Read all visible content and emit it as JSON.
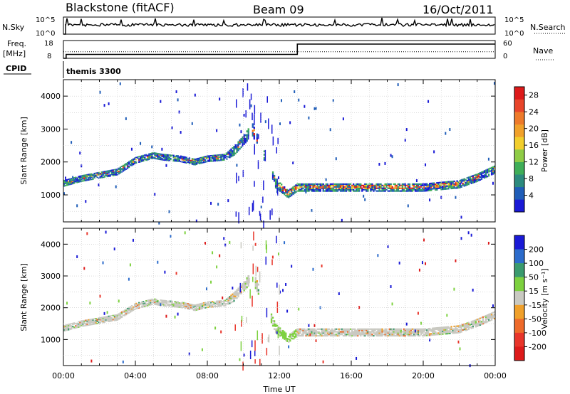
{
  "header": {
    "station": "Blackstone (fitACF)",
    "beam": "Beam 09",
    "date": "16/Oct/2011"
  },
  "panels": {
    "nsky": {
      "label": "N.Sky",
      "ticks": [
        "10^5",
        "10^0"
      ]
    },
    "nsearch": {
      "label": "N.Search",
      "ticks": [
        "10^5",
        "10^0"
      ]
    },
    "freq": {
      "label_top": "Freq.",
      "label_bottom": "[MHz]",
      "ticks": [
        "18",
        "8"
      ]
    },
    "nave": {
      "label": "Nave",
      "ticks": [
        "60",
        "0"
      ]
    },
    "cpid": {
      "label": "CPID",
      "value": "themis 3300"
    }
  },
  "xaxis": {
    "label": "Time UT",
    "ticks": [
      "00:00",
      "04:00",
      "08:00",
      "12:00",
      "16:00",
      "20:00",
      "00:00"
    ]
  },
  "chart_data": [
    {
      "type": "heatmap",
      "name": "power",
      "xlabel": "Time UT",
      "ylabel": "Slant Range [km]",
      "xlim": [
        0,
        24
      ],
      "ylim": [
        180,
        4500
      ],
      "yticks": [
        1000,
        2000,
        3000,
        4000
      ],
      "colorbar": {
        "label": "Power [dB]",
        "ticks": [
          "4",
          "8",
          "12",
          "16",
          "20",
          "24",
          "28"
        ],
        "range": [
          0,
          30
        ],
        "colors": [
          "#1a1ad6",
          "#1f5db8",
          "#2c8a7e",
          "#3fae58",
          "#8fcc46",
          "#f2ce2c",
          "#f1a12a",
          "#ee7a2a",
          "#e8452a",
          "#dd1a1a"
        ]
      },
      "echo_band": [
        [
          0.0,
          1250,
          1450
        ],
        [
          1.0,
          1400,
          1600
        ],
        [
          2.0,
          1500,
          1700
        ],
        [
          3.0,
          1600,
          1800
        ],
        [
          4.0,
          1950,
          2150
        ],
        [
          5.0,
          2100,
          2300
        ],
        [
          5.5,
          2050,
          2250
        ],
        [
          6.5,
          2000,
          2200
        ],
        [
          7.3,
          1900,
          2100
        ],
        [
          8.0,
          2000,
          2200
        ],
        [
          9.0,
          2050,
          2250
        ],
        [
          9.5,
          2200,
          2500
        ],
        [
          10.0,
          2500,
          2800
        ],
        [
          10.5,
          2800,
          3200
        ],
        [
          11.2,
          2000,
          2300
        ],
        [
          11.8,
          1200,
          1500
        ],
        [
          12.5,
          900,
          1150
        ],
        [
          13.0,
          1100,
          1350
        ],
        [
          16.0,
          1100,
          1350
        ],
        [
          20.0,
          1100,
          1350
        ],
        [
          22.0,
          1200,
          1450
        ],
        [
          23.0,
          1400,
          1650
        ],
        [
          24.0,
          1650,
          1900
        ]
      ],
      "scatter_density": 0.3
    },
    {
      "type": "heatmap",
      "name": "velocity",
      "xlabel": "Time UT",
      "ylabel": "Slant Range [km]",
      "xlim": [
        0,
        24
      ],
      "ylim": [
        180,
        4500
      ],
      "yticks": [
        1000,
        2000,
        3000,
        4000
      ],
      "colorbar": {
        "label": "Velocity [m s⁻¹]",
        "ticks": [
          "200",
          "100",
          "50",
          "15",
          "-15",
          "-50",
          "-100",
          "-200"
        ],
        "colors": [
          "#1a1ad6",
          "#2c6ccc",
          "#3a9a6e",
          "#7dd13f",
          "#c9c9c1",
          "#f0a02a",
          "#ee6a2a",
          "#e8352a",
          "#dd1a1a"
        ]
      },
      "echo_band": [
        [
          0.0,
          1250,
          1450
        ],
        [
          1.0,
          1400,
          1600
        ],
        [
          2.0,
          1500,
          1700
        ],
        [
          3.0,
          1600,
          1800
        ],
        [
          4.0,
          1950,
          2150
        ],
        [
          5.0,
          2100,
          2300
        ],
        [
          5.5,
          2050,
          2250
        ],
        [
          6.5,
          2000,
          2200
        ],
        [
          7.3,
          1900,
          2100
        ],
        [
          8.0,
          2000,
          2200
        ],
        [
          9.0,
          2050,
          2250
        ],
        [
          9.5,
          2200,
          2500
        ],
        [
          10.0,
          2500,
          2800
        ],
        [
          10.5,
          2800,
          3200
        ],
        [
          11.2,
          2000,
          2300
        ],
        [
          11.8,
          1200,
          1500
        ],
        [
          12.5,
          900,
          1150
        ],
        [
          13.0,
          1100,
          1350
        ],
        [
          16.0,
          1100,
          1350
        ],
        [
          20.0,
          1100,
          1350
        ],
        [
          22.0,
          1200,
          1450
        ],
        [
          23.0,
          1400,
          1650
        ],
        [
          24.0,
          1650,
          1900
        ]
      ]
    },
    {
      "type": "line",
      "name": "frequency",
      "ylim": [
        8,
        18
      ],
      "series": [
        {
          "x": [
            0.0,
            0.15,
            0.15,
            13.0,
            13.0,
            24.0
          ],
          "y": [
            8.0,
            8.0,
            10.2,
            10.2,
            16.0,
            16.0
          ]
        }
      ]
    },
    {
      "type": "line",
      "name": "nave",
      "ylim": [
        0,
        60
      ],
      "series": [
        {
          "x": [
            0.0,
            24.0
          ],
          "y": [
            22.0,
            22.0
          ]
        }
      ]
    }
  ]
}
